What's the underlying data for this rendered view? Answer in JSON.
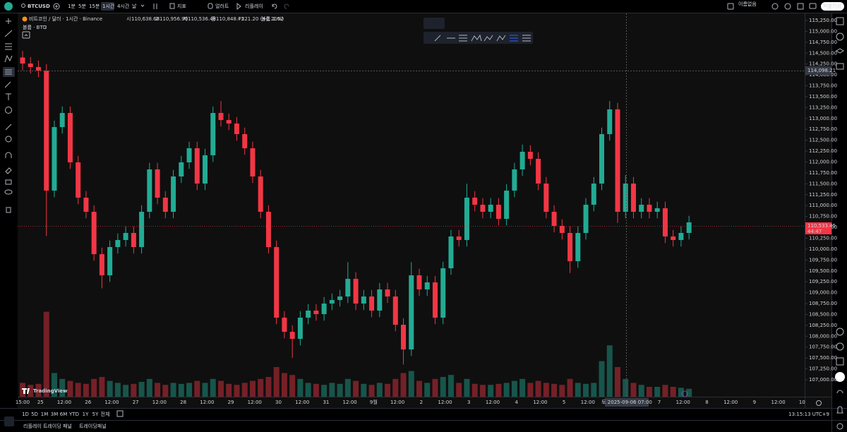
{
  "toolbar": {
    "symbol": "BTCUSD",
    "intervals": [
      "1분",
      "5분",
      "15분",
      "1시간",
      "4시간",
      "날"
    ],
    "active_interval": "1시간",
    "indicators": "지표",
    "alerts": "얼러트",
    "replay": "리플레이",
    "layout_name": "이름없음",
    "publish": "퍼블리쉬"
  },
  "legend": {
    "title": "비트코인 / 달러 · 1시간 · Binance",
    "open_label": "시",
    "open": "110,638.68",
    "high_label": "고",
    "high": "110,956.90",
    "low_label": "저",
    "low": "110,536.48",
    "close_label": "종",
    "close": "110,848.75",
    "change": "+221.20 (+0.20%)",
    "volume_label": "볼륨",
    "volume": "2.62",
    "volume_sub": "볼륨 · BTC",
    "volume_sub_n": "3"
  },
  "chart_data": {
    "type": "candlestick",
    "up_color": "#22ab94",
    "down_color": "#f23645",
    "ylim": [
      106611,
      115428
    ],
    "yticks": [
      {
        "value": 115250,
        "label": "115,250.00"
      },
      {
        "value": 115000,
        "label": "115,000.00"
      },
      {
        "value": 114750,
        "label": "114,750.00"
      },
      {
        "value": 114500,
        "label": "114,500.00"
      },
      {
        "value": 114250,
        "label": "114,250.00"
      },
      {
        "value": 114000,
        "label": "114,000.00"
      },
      {
        "value": 113750,
        "label": "113,750.00"
      },
      {
        "value": 113500,
        "label": "113,500.00"
      },
      {
        "value": 113250,
        "label": "113,250.00"
      },
      {
        "value": 113000,
        "label": "113,000.00"
      },
      {
        "value": 112750,
        "label": "112,750.00"
      },
      {
        "value": 112500,
        "label": "112,500.00"
      },
      {
        "value": 112250,
        "label": "112,250.00"
      },
      {
        "value": 112000,
        "label": "112,000.00"
      },
      {
        "value": 111750,
        "label": "111,750.00"
      },
      {
        "value": 111500,
        "label": "111,500.00"
      },
      {
        "value": 111250,
        "label": "111,250.00"
      },
      {
        "value": 111000,
        "label": "111,000.00"
      },
      {
        "value": 110750,
        "label": "110,750.00"
      },
      {
        "value": 110500,
        "label": "110,500.00"
      },
      {
        "value": 110250,
        "label": "110,250.00"
      },
      {
        "value": 110000,
        "label": "110,000.00"
      },
      {
        "value": 109750,
        "label": "109,750.00"
      },
      {
        "value": 109500,
        "label": "109,500.00"
      },
      {
        "value": 109250,
        "label": "109,250.00"
      },
      {
        "value": 109000,
        "label": "109,000.00"
      },
      {
        "value": 108750,
        "label": "108,750.00"
      },
      {
        "value": 108500,
        "label": "108,500.00"
      },
      {
        "value": 108250,
        "label": "108,250.00"
      },
      {
        "value": 108000,
        "label": "108,000.00"
      },
      {
        "value": 107750,
        "label": "107,750.00"
      },
      {
        "value": 107500,
        "label": "107,500.00"
      },
      {
        "value": 107250,
        "label": "107,250.00"
      },
      {
        "value": 107000,
        "label": "107,000.00"
      }
    ],
    "candles": [
      [
        114400,
        114550,
        114111,
        114261
      ],
      [
        114261,
        114411,
        114030,
        114180
      ],
      [
        114180,
        114330,
        113949,
        114099
      ],
      [
        114099,
        114249,
        110300,
        111343
      ],
      [
        111343,
        112952,
        111193,
        112802
      ],
      [
        112802,
        113276,
        112652,
        113126
      ],
      [
        113126,
        113276,
        111842,
        111992
      ],
      [
        111992,
        112142,
        111031,
        111181
      ],
      [
        111181,
        111331,
        110707,
        110857
      ],
      [
        110857,
        111007,
        109734,
        109884
      ],
      [
        109884,
        110034,
        109100,
        109398
      ],
      [
        109398,
        110197,
        109248,
        110047
      ],
      [
        110047,
        110359,
        109897,
        110209
      ],
      [
        110209,
        110521,
        110059,
        110371
      ],
      [
        110371,
        110521,
        109897,
        110047
      ],
      [
        110047,
        111007,
        109897,
        110857
      ],
      [
        110857,
        111980,
        110707,
        111830
      ],
      [
        111830,
        111980,
        111031,
        111181
      ],
      [
        111181,
        111331,
        110707,
        110857
      ],
      [
        110857,
        111818,
        110707,
        111668
      ],
      [
        111668,
        112142,
        111518,
        111992
      ],
      [
        111992,
        112466,
        111842,
        112316
      ],
      [
        112316,
        112466,
        111355,
        111505
      ],
      [
        111505,
        112304,
        111355,
        112154
      ],
      [
        112154,
        113276,
        112004,
        113126
      ],
      [
        113126,
        113400,
        112814,
        112964
      ],
      [
        112964,
        113114,
        112733,
        112883
      ],
      [
        112883,
        113033,
        112490,
        112640
      ],
      [
        112640,
        112790,
        112166,
        112316
      ],
      [
        112316,
        112466,
        111518,
        111668
      ],
      [
        111668,
        111818,
        110707,
        110857
      ],
      [
        110857,
        111007,
        109897,
        110047
      ],
      [
        110047,
        110197,
        108276,
        108426
      ],
      [
        108426,
        108576,
        107951,
        108101
      ],
      [
        108101,
        108251,
        107500,
        107939
      ],
      [
        107939,
        108576,
        107789,
        108426
      ],
      [
        108426,
        108738,
        108276,
        108588
      ],
      [
        108588,
        108738,
        108357,
        108507
      ],
      [
        108507,
        108900,
        108357,
        108750
      ],
      [
        108750,
        108981,
        108600,
        108831
      ],
      [
        108831,
        109062,
        108681,
        108912
      ],
      [
        108912,
        109700,
        108762,
        109317
      ],
      [
        109317,
        109467,
        108600,
        108750
      ],
      [
        108750,
        109062,
        108600,
        108912
      ],
      [
        108912,
        109062,
        108438,
        108588
      ],
      [
        108588,
        109224,
        108438,
        109074
      ],
      [
        109074,
        109224,
        108762,
        108912
      ],
      [
        108912,
        109062,
        108113,
        108263
      ],
      [
        108263,
        108413,
        107350,
        107696
      ],
      [
        107696,
        109700,
        107546,
        109398
      ],
      [
        109398,
        109548,
        108924,
        109074
      ],
      [
        109074,
        109386,
        108924,
        109236
      ],
      [
        109236,
        109386,
        108276,
        108426
      ],
      [
        108426,
        109710,
        108276,
        109560
      ],
      [
        109560,
        110440,
        109410,
        110290
      ],
      [
        110290,
        110440,
        110059,
        110209
      ],
      [
        110209,
        111500,
        110059,
        111181
      ],
      [
        111181,
        111331,
        110869,
        111019
      ],
      [
        111019,
        111169,
        110707,
        110857
      ],
      [
        110857,
        111169,
        110707,
        111019
      ],
      [
        111019,
        111169,
        110545,
        110695
      ],
      [
        110695,
        111493,
        110545,
        111343
      ],
      [
        111343,
        111980,
        111193,
        111830
      ],
      [
        111830,
        112400,
        111680,
        112235
      ],
      [
        112235,
        112385,
        111923,
        112073
      ],
      [
        112073,
        112223,
        111355,
        111505
      ],
      [
        111505,
        111655,
        110707,
        110857
      ],
      [
        110857,
        111007,
        110383,
        110533
      ],
      [
        110533,
        110683,
        110221,
        110371
      ],
      [
        110371,
        110521,
        109450,
        109722
      ],
      [
        109722,
        110521,
        109572,
        110371
      ],
      [
        110371,
        111169,
        110221,
        111019
      ],
      [
        111019,
        111655,
        110869,
        111505
      ],
      [
        111505,
        112790,
        111355,
        112640
      ],
      [
        112640,
        113400,
        112490,
        113208
      ],
      [
        113208,
        113358,
        110600,
        110857
      ],
      [
        110857,
        111700,
        110707,
        111505
      ],
      [
        111505,
        111655,
        110707,
        110857
      ],
      [
        110857,
        111169,
        110707,
        111019
      ],
      [
        111019,
        111169,
        110707,
        110857
      ],
      [
        110857,
        111088,
        110707,
        110938
      ],
      [
        110938,
        111088,
        110140,
        110290
      ],
      [
        110290,
        110440,
        110059,
        110209
      ],
      [
        110209,
        110521,
        110059,
        110371
      ],
      [
        110371,
        110764,
        110221,
        110614
      ]
    ],
    "volume_lim": [
      0,
      5000
    ],
    "volume": [
      700,
      600,
      650,
      4300,
      1200,
      900,
      800,
      700,
      650,
      900,
      1000,
      800,
      700,
      600,
      650,
      750,
      900,
      700,
      600,
      700,
      650,
      700,
      800,
      700,
      900,
      800,
      650,
      600,
      700,
      800,
      900,
      1000,
      1500,
      1200,
      1100,
      900,
      700,
      650,
      600,
      700,
      650,
      900,
      800,
      650,
      600,
      700,
      650,
      900,
      1200,
      1300,
      800,
      700,
      900,
      1000,
      1100,
      700,
      900,
      650,
      600,
      600,
      650,
      700,
      800,
      900,
      700,
      800,
      700,
      650,
      600,
      900,
      700,
      650,
      700,
      1800,
      2600,
      1500,
      900,
      700,
      600,
      500,
      500,
      600,
      500,
      450,
      400
    ],
    "time_labels": [
      "15:00",
      "25",
      "12:00",
      "26",
      "12:00",
      "27",
      "12:00",
      "28",
      "12:00",
      "29",
      "12:00",
      "30",
      "12:00",
      "31",
      "12:00",
      "9월",
      "12:00",
      "2",
      "12:00",
      "3",
      "12:00",
      "4",
      "12:00",
      "5",
      "12:00",
      null,
      null,
      "7",
      "12:00",
      "8",
      "12:00",
      "9",
      "12:00",
      "10"
    ],
    "crosshair_price": "114,098.21",
    "last_price": "110,533.45",
    "countdown": "44:47",
    "crosshair_time": "토 2025-09-06   07:00"
  },
  "watermark": "TradingView",
  "ranges": [
    "1D",
    "5D",
    "1M",
    "3M",
    "6M",
    "YTD",
    "1Y",
    "5Y",
    "전체"
  ],
  "clock": "13:15:13 UTC+9",
  "panel_tabs": [
    "리플레이 트레이딩 패널",
    "트레이딩패널"
  ]
}
